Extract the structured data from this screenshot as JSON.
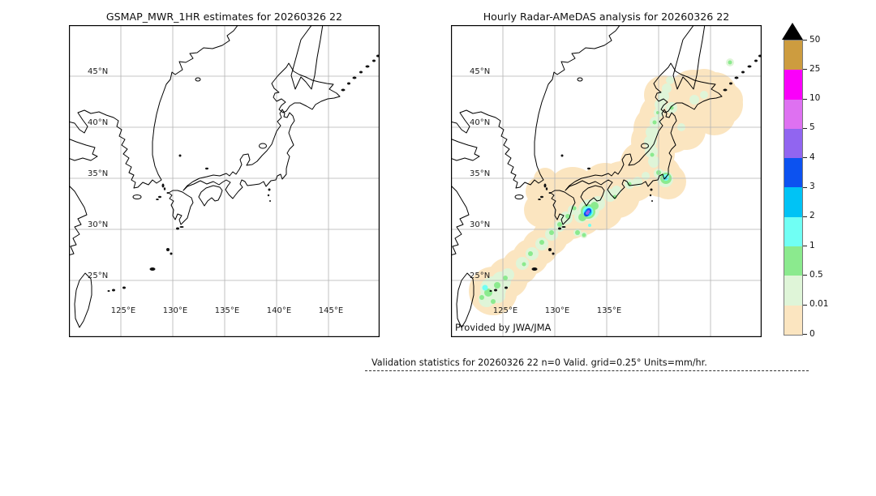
{
  "footer": {
    "text": "Validation statistics for 20260326 22  n=0 Valid. grid=0.25° Units=mm/hr."
  },
  "chart_data": {
    "type": "heatmap",
    "subtype": "precipitation-map-comparison",
    "panels": [
      {
        "title": "GSMAP_MWR_1HR estimates for 20260326 22",
        "has_precip": false,
        "note": "no satellite estimates plotted (n=0)",
        "lon_tick_labels": [
          125,
          130,
          135,
          140,
          145
        ],
        "credit": ""
      },
      {
        "title": "Hourly Radar-AMeDAS analysis for 20260326 22",
        "has_precip": true,
        "lon_tick_labels": [
          125,
          130,
          135
        ],
        "credit": "Provided by JWA/JMA"
      }
    ],
    "axes": {
      "lon_range": [
        120,
        150
      ],
      "lat_range": [
        20,
        50
      ],
      "grid": true,
      "grid_color": "#b3b3b3",
      "lat_ticks": [
        {
          "value": 45,
          "label": "45°N"
        },
        {
          "value": 40,
          "label": "40°N"
        },
        {
          "value": 35,
          "label": "35°N"
        },
        {
          "value": 30,
          "label": "30°N"
        },
        {
          "value": 25,
          "label": "25°N"
        }
      ],
      "lon_ticks": [
        {
          "value": 125,
          "label": "125°E"
        },
        {
          "value": 130,
          "label": "130°E"
        },
        {
          "value": 135,
          "label": "135°E"
        },
        {
          "value": 140,
          "label": "140°E"
        },
        {
          "value": 145,
          "label": "145°E"
        }
      ]
    },
    "colorbar": {
      "units": "mm/hr",
      "tick_labels": [
        "50",
        "25",
        "10",
        "5",
        "4",
        "3",
        "2",
        "1",
        "0.5",
        "0.01",
        "0"
      ],
      "segments_top_to_bottom": [
        {
          "range": "25-50",
          "color": "#CD9C3F"
        },
        {
          "range": "10-25",
          "color": "#FA00FA"
        },
        {
          "range": "5-10",
          "color": "#DE71F1"
        },
        {
          "range": "4-5",
          "color": "#9165F0"
        },
        {
          "range": "3-4",
          "color": "#0C52F0"
        },
        {
          "range": "2-3",
          "color": "#00C3F5"
        },
        {
          "range": "1-2",
          "color": "#70FFF4"
        },
        {
          "range": "0.5-1",
          "color": "#8BEA8E"
        },
        {
          "range": "0.01-0.5",
          "color": "#DFF5D8"
        },
        {
          "range": "0-0.01",
          "color": "#FBE5C0"
        }
      ],
      "overflow_color": "#000000"
    },
    "precip": {
      "coord_note": "map-local px: x=(lon-120)*12.8, y=(50-lat)*12.6; circles [x,y,r]",
      "levels": [
        {
          "range": "0-0.01",
          "color": "#FBE5C0",
          "circles": [
            [
              52,
              328,
              30
            ],
            [
              70,
              312,
              25
            ],
            [
              85,
              298,
              22
            ],
            [
              98,
              286,
              22
            ],
            [
              110,
              274,
              22
            ],
            [
              122,
              262,
              22
            ],
            [
              134,
              250,
              22
            ],
            [
              148,
              238,
              26
            ],
            [
              130,
              222,
              30
            ],
            [
              150,
              207,
              32
            ],
            [
              170,
              215,
              32
            ],
            [
              160,
              232,
              28
            ],
            [
              185,
              225,
              28
            ],
            [
              190,
              200,
              30
            ],
            [
              205,
              210,
              28
            ],
            [
              112,
              228,
              22
            ],
            [
              110,
              205,
              18
            ],
            [
              116,
              190,
              14
            ],
            [
              210,
              196,
              28
            ],
            [
              225,
              190,
              28
            ],
            [
              240,
              183,
              28
            ],
            [
              258,
              186,
              26
            ],
            [
              268,
              193,
              22
            ],
            [
              235,
              170,
              26
            ],
            [
              248,
              158,
              28
            ],
            [
              250,
              143,
              28
            ],
            [
              255,
              128,
              30
            ],
            [
              262,
              113,
              30
            ],
            [
              272,
              128,
              30
            ],
            [
              290,
              130,
              24
            ],
            [
              280,
              112,
              30
            ],
            [
              268,
              98,
              28
            ],
            [
              262,
              86,
              24
            ],
            [
              285,
              95,
              30
            ],
            [
              298,
              85,
              30
            ],
            [
              312,
              80,
              26
            ],
            [
              325,
              86,
              28
            ],
            [
              334,
              98,
              26
            ],
            [
              325,
              110,
              26
            ],
            [
              305,
              102,
              28
            ],
            [
              340,
              92,
              20
            ]
          ]
        },
        {
          "range": "0.01-0.5",
          "color": "#DFF5D8",
          "circles": [
            [
              52,
              326,
              16
            ],
            [
              62,
              316,
              12
            ],
            [
              44,
              338,
              10
            ],
            [
              58,
              334,
              9
            ],
            [
              70,
              308,
              8
            ],
            [
              88,
              294,
              8
            ],
            [
              100,
              282,
              8
            ],
            [
              112,
              270,
              8
            ],
            [
              124,
              258,
              8
            ],
            [
              134,
              248,
              7
            ],
            [
              142,
              238,
              8
            ],
            [
              150,
              228,
              6
            ],
            [
              170,
              228,
              13
            ],
            [
              181,
              220,
              9
            ],
            [
              160,
              236,
              8
            ],
            [
              156,
              256,
              5
            ],
            [
              164,
              259,
              4
            ],
            [
              196,
              210,
              8
            ],
            [
              204,
              204,
              6
            ],
            [
              220,
              196,
              6
            ],
            [
              250,
              170,
              6
            ],
            [
              264,
              190,
              10
            ],
            [
              256,
              183,
              6
            ],
            [
              230,
              193,
              6
            ],
            [
              240,
              186,
              5
            ],
            [
              250,
              168,
              7
            ],
            [
              247,
              156,
              8
            ],
            [
              246,
              144,
              8
            ],
            [
              248,
              132,
              8
            ],
            [
              252,
              120,
              7
            ],
            [
              256,
              108,
              6
            ],
            [
              258,
              98,
              7
            ],
            [
              262,
              88,
              7
            ],
            [
              266,
              78,
              6
            ],
            [
              270,
              68,
              5
            ],
            [
              272,
              102,
              7
            ],
            [
              284,
              126,
              5
            ],
            [
              300,
              92,
              6
            ],
            [
              312,
              86,
              5
            ],
            [
              344,
              46,
              5
            ]
          ]
        },
        {
          "range": "0.5-1",
          "color": "#8BEA8E",
          "circles": [
            [
              46,
              330,
              5
            ],
            [
              57,
              321,
              4
            ],
            [
              38,
              336,
              3
            ],
            [
              67,
              312,
              3
            ],
            [
              52,
              341,
              3
            ],
            [
              90,
              295,
              2.5
            ],
            [
              98,
              282,
              3
            ],
            [
              112,
              268,
              3
            ],
            [
              124,
              256,
              3
            ],
            [
              134,
              246,
              3
            ],
            [
              144,
              236,
              3
            ],
            [
              152,
              226,
              2.5
            ],
            [
              169,
              230,
              9
            ],
            [
              177,
              223,
              5
            ],
            [
              162,
              237,
              5
            ],
            [
              156,
              256,
              3
            ],
            [
              164,
              259,
              2.5
            ],
            [
              202,
              212,
              2.5
            ],
            [
              220,
              196,
              2.5
            ],
            [
              265,
              189,
              7
            ],
            [
              256,
              182,
              3
            ],
            [
              251,
              120,
              2.5
            ],
            [
              255,
              108,
              2
            ],
            [
              248,
              160,
              2.5
            ],
            [
              344,
              46,
              2.5
            ],
            [
              272,
              102,
              2.5
            ]
          ]
        },
        {
          "range": "1-2",
          "color": "#70FFF4",
          "circles": [
            [
              169,
              230,
              6.5
            ],
            [
              171,
              247,
              2
            ],
            [
              265,
              188,
              4
            ],
            [
              42,
              324,
              3.5
            ]
          ]
        },
        {
          "range": "2-3",
          "color": "#00C3F5",
          "circles": [
            [
              169,
              231,
              4.5
            ],
            [
              265,
              189,
              1.5
            ]
          ]
        },
        {
          "range": "3-4",
          "color": "#0C52F0",
          "circles": [
            [
              167,
              233,
              3.2
            ],
            [
              170,
              229,
              3.2
            ]
          ]
        },
        {
          "range": "4-5",
          "color": "#9165F0",
          "circles": [
            [
              168,
              232,
              2
            ],
            [
              169.5,
              230,
              1.8
            ]
          ]
        }
      ]
    }
  }
}
